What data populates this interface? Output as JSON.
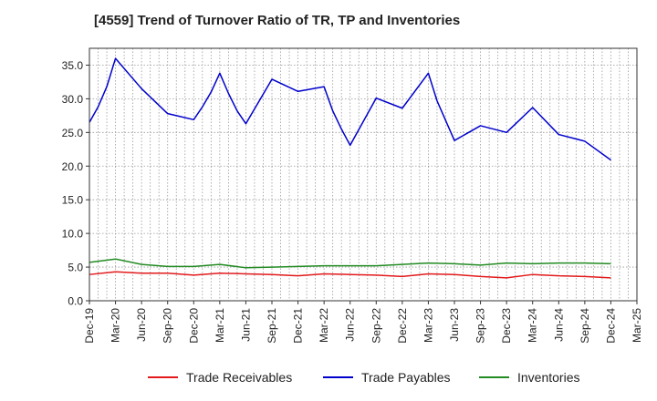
{
  "chart_data": {
    "type": "line",
    "title": "[4559]  Trend of Turnover Ratio of TR, TP and Inventories",
    "xlabel": "",
    "ylabel": "",
    "ylim": [
      0,
      37.5
    ],
    "yticks": [
      "0.0",
      "5.0",
      "10.0",
      "15.0",
      "20.0",
      "25.0",
      "30.0",
      "35.0"
    ],
    "ytick_values": [
      0,
      5,
      10,
      15,
      20,
      25,
      30,
      35
    ],
    "x": [
      "Dec-19",
      "Jan-20",
      "Feb-20",
      "Mar-20",
      "Apr-20",
      "May-20",
      "Jun-20",
      "Jul-20",
      "Aug-20",
      "Sep-20",
      "Oct-20",
      "Nov-20",
      "Dec-20",
      "Jan-21",
      "Feb-21",
      "Mar-21",
      "Apr-21",
      "May-21",
      "Jun-21",
      "Jul-21",
      "Aug-21",
      "Sep-21",
      "Oct-21",
      "Nov-21",
      "Dec-21",
      "Jan-22",
      "Feb-22",
      "Mar-22",
      "Apr-22",
      "May-22",
      "Jun-22",
      "Jul-22",
      "Aug-22",
      "Sep-22",
      "Oct-22",
      "Nov-22",
      "Dec-22",
      "Jan-23",
      "Feb-23",
      "Mar-23",
      "Apr-23",
      "May-23",
      "Jun-23",
      "Jul-23",
      "Aug-23",
      "Sep-23",
      "Oct-23",
      "Nov-23",
      "Dec-23",
      "Jan-24",
      "Feb-24",
      "Mar-24",
      "Apr-24",
      "May-24",
      "Jun-24",
      "Jul-24",
      "Aug-24",
      "Sep-24",
      "Oct-24",
      "Nov-24",
      "Dec-24",
      "Jan-25",
      "Feb-25",
      "Mar-25"
    ],
    "xtick_labels": [
      "Dec-19",
      "Mar-20",
      "Jun-20",
      "Sep-20",
      "Dec-20",
      "Mar-21",
      "Jun-21",
      "Sep-21",
      "Dec-21",
      "Mar-22",
      "Jun-22",
      "Sep-22",
      "Dec-22",
      "Mar-23",
      "Jun-23",
      "Sep-23",
      "Dec-23",
      "Mar-24",
      "Jun-24",
      "Sep-24",
      "Dec-24",
      "Mar-25"
    ],
    "series": [
      {
        "name": "Trade Receivables",
        "color": "#e31a1c",
        "points": [
          [
            "Dec-19",
            3.9
          ],
          [
            "Mar-20",
            4.3
          ],
          [
            "Jun-20",
            4.1
          ],
          [
            "Sep-20",
            4.1
          ],
          [
            "Dec-20",
            3.8
          ],
          [
            "Mar-21",
            4.1
          ],
          [
            "Jun-21",
            4.0
          ],
          [
            "Sep-21",
            3.9
          ],
          [
            "Dec-21",
            3.7
          ],
          [
            "Mar-22",
            4.0
          ],
          [
            "Jun-22",
            3.9
          ],
          [
            "Sep-22",
            3.8
          ],
          [
            "Dec-22",
            3.6
          ],
          [
            "Mar-23",
            4.0
          ],
          [
            "Jun-23",
            3.9
          ],
          [
            "Sep-23",
            3.6
          ],
          [
            "Dec-23",
            3.4
          ],
          [
            "Mar-24",
            3.9
          ],
          [
            "Jun-24",
            3.7
          ],
          [
            "Sep-24",
            3.6
          ],
          [
            "Dec-24",
            3.4
          ]
        ]
      },
      {
        "name": "Trade Payables",
        "color": "#0000cc",
        "points": [
          [
            "Dec-19",
            26.5
          ],
          [
            "Jan-20",
            28.8
          ],
          [
            "Feb-20",
            31.8
          ],
          [
            "Mar-20",
            36.0
          ],
          [
            "Jun-20",
            31.5
          ],
          [
            "Sep-20",
            27.8
          ],
          [
            "Dec-20",
            26.9
          ],
          [
            "Jan-21",
            28.8
          ],
          [
            "Feb-21",
            31.0
          ],
          [
            "Mar-21",
            33.8
          ],
          [
            "Apr-21",
            30.8
          ],
          [
            "May-21",
            28.2
          ],
          [
            "Jun-21",
            26.3
          ],
          [
            "Sep-21",
            32.9
          ],
          [
            "Dec-21",
            31.1
          ],
          [
            "Mar-22",
            31.8
          ],
          [
            "Apr-22",
            28.2
          ],
          [
            "May-22",
            25.5
          ],
          [
            "Jun-22",
            23.1
          ],
          [
            "Sep-22",
            30.1
          ],
          [
            "Dec-22",
            28.6
          ],
          [
            "Mar-23",
            33.8
          ],
          [
            "Apr-23",
            29.7
          ],
          [
            "Jun-23",
            23.8
          ],
          [
            "Sep-23",
            26.0
          ],
          [
            "Dec-23",
            25.0
          ],
          [
            "Mar-24",
            28.7
          ],
          [
            "Jun-24",
            24.7
          ],
          [
            "Sep-24",
            23.7
          ],
          [
            "Dec-24",
            20.9
          ]
        ]
      },
      {
        "name": "Inventories",
        "color": "#228b22",
        "points": [
          [
            "Dec-19",
            5.7
          ],
          [
            "Mar-20",
            6.2
          ],
          [
            "Jun-20",
            5.4
          ],
          [
            "Sep-20",
            5.1
          ],
          [
            "Dec-20",
            5.1
          ],
          [
            "Mar-21",
            5.4
          ],
          [
            "Jun-21",
            4.9
          ],
          [
            "Sep-21",
            5.0
          ],
          [
            "Dec-21",
            5.1
          ],
          [
            "Mar-22",
            5.2
          ],
          [
            "Jun-22",
            5.2
          ],
          [
            "Sep-22",
            5.2
          ],
          [
            "Dec-22",
            5.4
          ],
          [
            "Mar-23",
            5.6
          ],
          [
            "Jun-23",
            5.5
          ],
          [
            "Sep-23",
            5.3
          ],
          [
            "Dec-23",
            5.6
          ],
          [
            "Mar-24",
            5.5
          ],
          [
            "Jun-24",
            5.6
          ],
          [
            "Sep-24",
            5.6
          ],
          [
            "Dec-24",
            5.5
          ]
        ]
      }
    ],
    "grid": true,
    "legend_position": "bottom"
  }
}
